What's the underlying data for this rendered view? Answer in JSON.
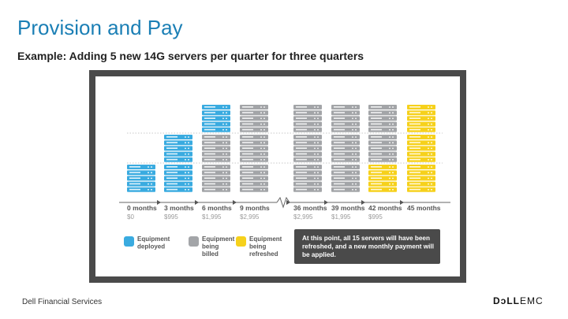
{
  "slide": {
    "title": "Provision and Pay",
    "subtitle": "Example: Adding 5 new 14G servers per quarter for three quarters",
    "footer_left": "Dell Financial Services",
    "logo_dell": "DɔLL",
    "logo_emc": "EMC"
  },
  "colors": {
    "deployed": "#3aabe0",
    "billed": "#a3a5a8",
    "refreshed": "#f6d11c",
    "frame": "#4a4a4a",
    "callout_bg": "#4a4a4a"
  },
  "timeline": [
    {
      "label": "0 months",
      "amount": "$0",
      "stacks": [
        "deployed"
      ]
    },
    {
      "label": "3 months",
      "amount": "$995",
      "stacks": [
        "deployed",
        "deployed"
      ]
    },
    {
      "label": "6 months",
      "amount": "$1,995",
      "stacks": [
        "billed",
        "billed",
        "deployed"
      ]
    },
    {
      "label": "9 months",
      "amount": "$2,995",
      "stacks": [
        "billed",
        "billed",
        "billed"
      ]
    },
    {
      "label": "36 months",
      "amount": "$2,995",
      "stacks": [
        "billed",
        "billed",
        "billed"
      ]
    },
    {
      "label": "39 months",
      "amount": "$1,995",
      "stacks": [
        "billed",
        "billed",
        "billed"
      ]
    },
    {
      "label": "42 months",
      "amount": "$995",
      "stacks": [
        "refreshed",
        "billed",
        "billed"
      ]
    },
    {
      "label": "45 months",
      "amount": "",
      "stacks": [
        "refreshed",
        "refreshed",
        "refreshed"
      ]
    }
  ],
  "legend": [
    {
      "key": "deployed",
      "lines": [
        "Equipment",
        "deployed"
      ]
    },
    {
      "key": "billed",
      "lines": [
        "Equipment",
        "being",
        "billed"
      ]
    },
    {
      "key": "refreshed",
      "lines": [
        "Equipment",
        "being",
        "refreshed"
      ]
    }
  ],
  "callout": {
    "lines": [
      "At this point, all 15 servers will have been",
      "refreshed, and a new monthly payment will",
      "be applied."
    ]
  }
}
